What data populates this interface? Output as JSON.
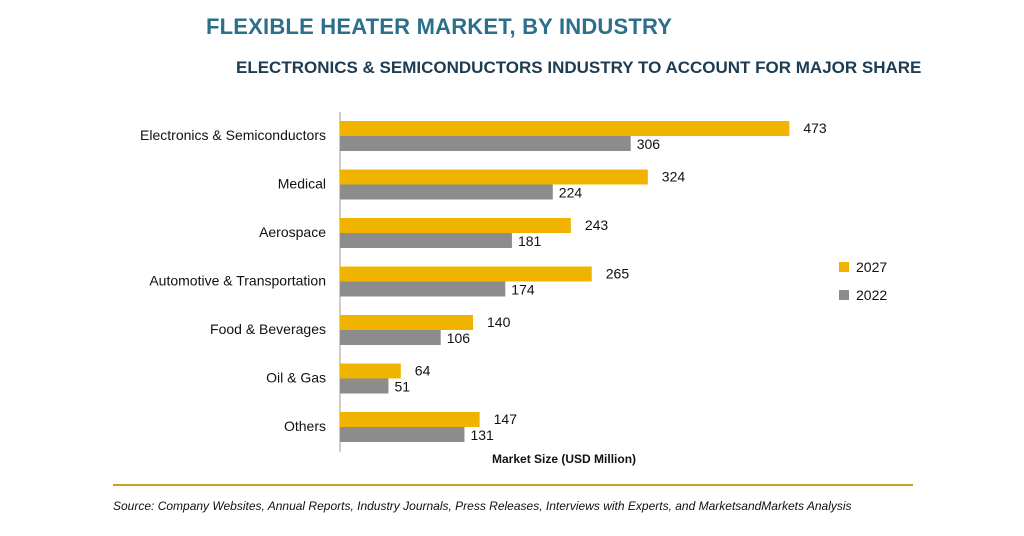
{
  "chart_data": {
    "type": "bar",
    "orientation": "horizontal",
    "title": "FLEXIBLE HEATER MARKET, BY INDUSTRY",
    "subtitle": "ELECTRONICS & SEMICONDUCTORS INDUSTRY TO ACCOUNT FOR MAJOR SHARE",
    "xlabel": "Market Size (USD Million)",
    "ylabel": "",
    "categories": [
      "Electronics & Semiconductors",
      "Medical",
      "Aerospace",
      "Automotive & Transportation",
      "Food & Beverages",
      "Oil & Gas",
      "Others"
    ],
    "series": [
      {
        "name": "2027",
        "color": "#f0b400",
        "values": [
          473,
          324,
          243,
          265,
          140,
          64,
          147
        ]
      },
      {
        "name": "2022",
        "color": "#8c8c8c",
        "values": [
          306,
          224,
          181,
          174,
          106,
          51,
          131
        ]
      }
    ],
    "xlim": [
      0,
      500
    ],
    "grid": false,
    "legend_position": "right"
  },
  "source": "Source: Company Websites, Annual Reports, Industry Journals, Press Releases, Interviews with Experts, and MarketsandMarkets Analysis",
  "colors": {
    "title": "#2b6f8a",
    "subtitle": "#1d3c52",
    "accent_rule": "#c7a020"
  }
}
